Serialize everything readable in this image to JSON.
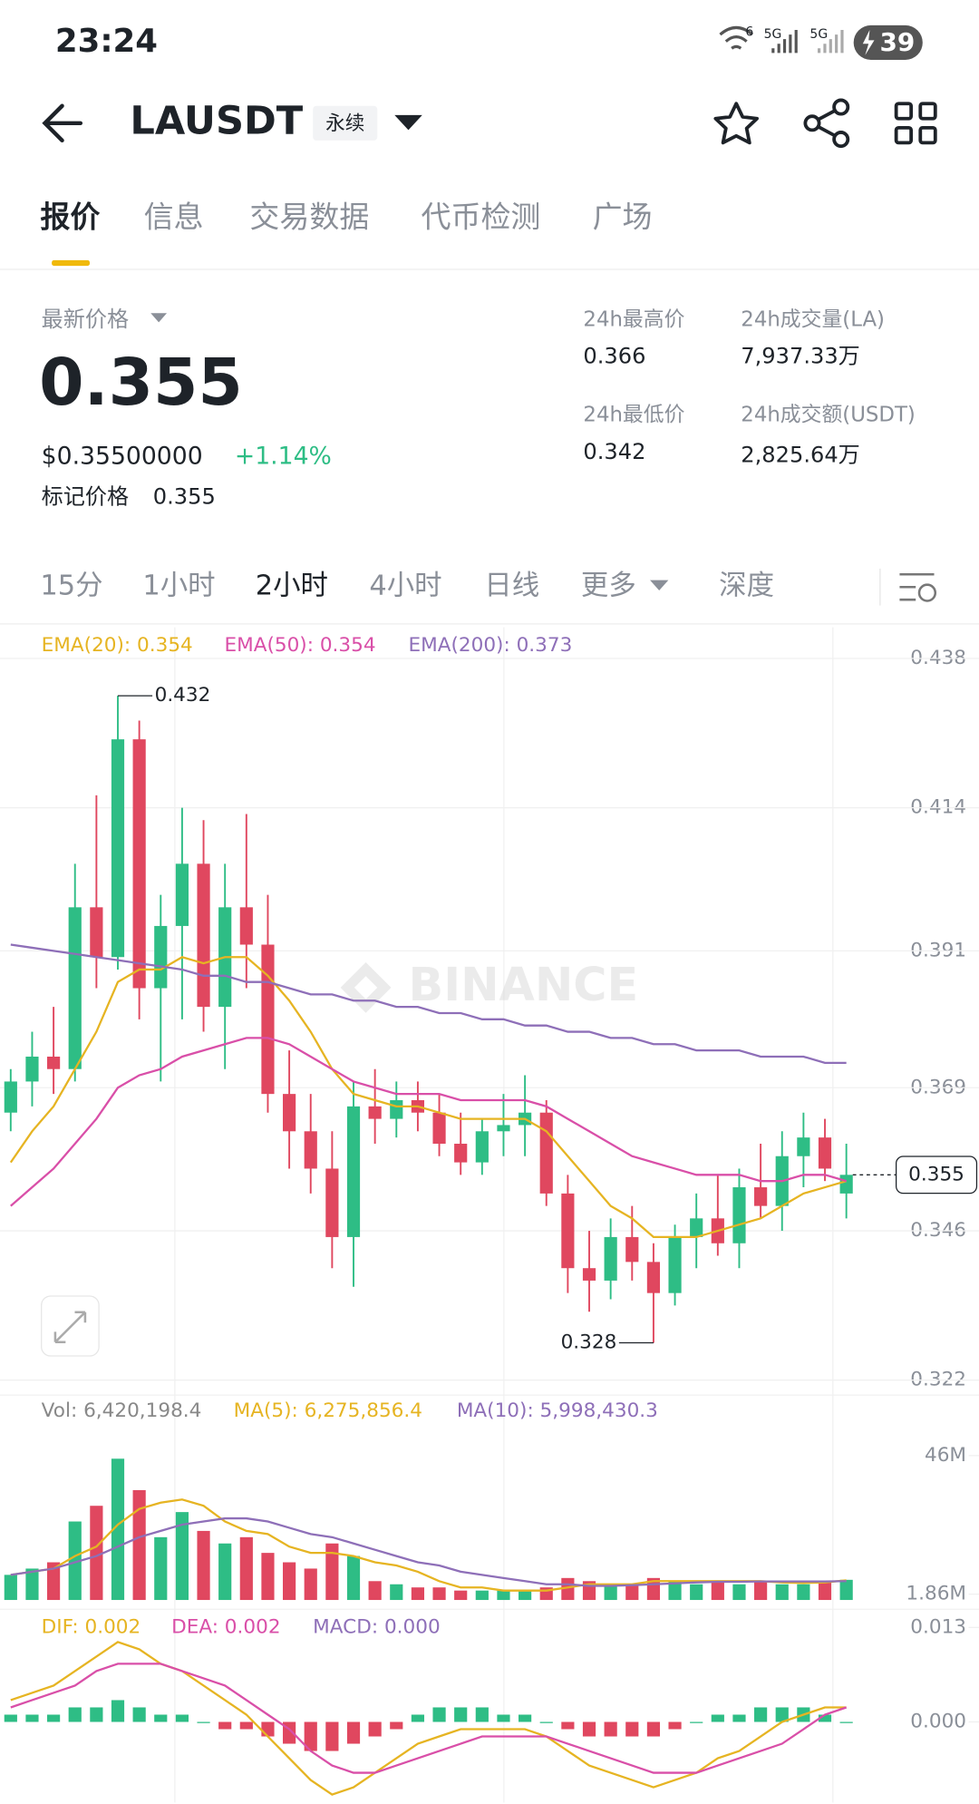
{
  "status_bar": {
    "time": "23:24",
    "wifi": "6",
    "network": [
      "5G",
      "5G"
    ],
    "battery": "39"
  },
  "header": {
    "symbol": "LAUSDT",
    "tag": "永续"
  },
  "tabs": [
    "报价",
    "信息",
    "交易数据",
    "代币检测",
    "广场"
  ],
  "price": {
    "latest_label": "最新价格",
    "last": "0.355",
    "usd": "$0.35500000",
    "change": "+1.14%",
    "mark_label": "标记价格",
    "mark": "0.355"
  },
  "stats": [
    {
      "label": "24h最高价",
      "value": "0.366"
    },
    {
      "label": "24h成交量(LA)",
      "value": "7,937.33万"
    },
    {
      "label": "24h最低价",
      "value": "0.342"
    },
    {
      "label": "24h成交额(USDT)",
      "value": "2,825.64万"
    }
  ],
  "intervals": [
    "15分",
    "1小时",
    "2小时",
    "4小时",
    "日线",
    "更多",
    "深度"
  ],
  "watermark": "BINANCE",
  "chart_data": [
    {
      "type": "candlestick",
      "up_color": "#2ebd85",
      "down_color": "#e0475f",
      "open": [
        0.365,
        0.37,
        0.374,
        0.372,
        0.398,
        0.39,
        0.425,
        0.385,
        0.395,
        0.405,
        0.382,
        0.398,
        0.392,
        0.368,
        0.362,
        0.356,
        0.345,
        0.366,
        0.364,
        0.367,
        0.365,
        0.36,
        0.357,
        0.362,
        0.363,
        0.365,
        0.352,
        0.34,
        0.338,
        0.345,
        0.341,
        0.336,
        0.345,
        0.348,
        0.344,
        0.353,
        0.35,
        0.358,
        0.361,
        0.352
      ],
      "high": [
        0.372,
        0.378,
        0.382,
        0.405,
        0.416,
        0.432,
        0.428,
        0.4,
        0.414,
        0.412,
        0.405,
        0.413,
        0.4,
        0.375,
        0.368,
        0.362,
        0.37,
        0.372,
        0.37,
        0.37,
        0.368,
        0.365,
        0.364,
        0.368,
        0.371,
        0.367,
        0.355,
        0.346,
        0.348,
        0.35,
        0.344,
        0.347,
        0.352,
        0.355,
        0.356,
        0.36,
        0.362,
        0.365,
        0.364,
        0.36
      ],
      "low": [
        0.362,
        0.366,
        0.368,
        0.37,
        0.385,
        0.388,
        0.38,
        0.37,
        0.38,
        0.378,
        0.372,
        0.385,
        0.365,
        0.356,
        0.352,
        0.34,
        0.337,
        0.36,
        0.361,
        0.362,
        0.358,
        0.355,
        0.355,
        0.358,
        0.358,
        0.35,
        0.336,
        0.333,
        0.335,
        0.338,
        0.328,
        0.334,
        0.34,
        0.342,
        0.34,
        0.348,
        0.346,
        0.353,
        0.354,
        0.348
      ],
      "close": [
        0.37,
        0.374,
        0.372,
        0.398,
        0.39,
        0.425,
        0.385,
        0.395,
        0.405,
        0.382,
        0.398,
        0.392,
        0.368,
        0.362,
        0.356,
        0.345,
        0.366,
        0.364,
        0.367,
        0.365,
        0.36,
        0.357,
        0.362,
        0.363,
        0.365,
        0.352,
        0.34,
        0.338,
        0.345,
        0.341,
        0.336,
        0.345,
        0.348,
        0.344,
        0.353,
        0.35,
        0.358,
        0.361,
        0.356,
        0.355
      ],
      "series": [
        {
          "name": "EMA(20): 0.354",
          "color": "#e6b422",
          "values": [
            0.357,
            0.362,
            0.366,
            0.372,
            0.378,
            0.386,
            0.388,
            0.388,
            0.39,
            0.389,
            0.39,
            0.39,
            0.387,
            0.383,
            0.378,
            0.372,
            0.368,
            0.367,
            0.366,
            0.366,
            0.365,
            0.364,
            0.364,
            0.364,
            0.364,
            0.362,
            0.358,
            0.354,
            0.35,
            0.348,
            0.345,
            0.345,
            0.345,
            0.346,
            0.347,
            0.348,
            0.35,
            0.352,
            0.353,
            0.354
          ]
        },
        {
          "name": "EMA(50): 0.354",
          "color": "#d94fa8",
          "values": [
            0.35,
            0.353,
            0.356,
            0.36,
            0.364,
            0.369,
            0.371,
            0.372,
            0.374,
            0.375,
            0.376,
            0.377,
            0.377,
            0.376,
            0.374,
            0.372,
            0.37,
            0.369,
            0.368,
            0.368,
            0.368,
            0.367,
            0.367,
            0.367,
            0.367,
            0.366,
            0.364,
            0.362,
            0.36,
            0.358,
            0.357,
            0.356,
            0.355,
            0.355,
            0.355,
            0.354,
            0.354,
            0.355,
            0.355,
            0.354
          ]
        },
        {
          "name": "EMA(200): 0.373",
          "color": "#8e6fb8",
          "values": [
            0.392,
            0.3915,
            0.391,
            0.3905,
            0.39,
            0.3895,
            0.389,
            0.3885,
            0.388,
            0.387,
            0.387,
            0.386,
            0.386,
            0.385,
            0.384,
            0.384,
            0.383,
            0.383,
            0.382,
            0.382,
            0.381,
            0.381,
            0.38,
            0.38,
            0.379,
            0.379,
            0.378,
            0.378,
            0.377,
            0.377,
            0.376,
            0.376,
            0.375,
            0.375,
            0.375,
            0.374,
            0.374,
            0.374,
            0.373,
            0.373
          ]
        }
      ],
      "annotations": [
        0.432,
        0.328
      ],
      "last_price": 0.355,
      "ylim": [
        0.3196,
        0.443
      ],
      "yticks": [
        0.438,
        0.414,
        0.391,
        0.369,
        0.346,
        0.322
      ],
      "grid": true
    },
    {
      "type": "bar",
      "name": "Vol: 6,420,198.4",
      "name_color": "#888888",
      "up_color": "#2ebd85",
      "down_color": "#e0475f",
      "values": [
        8,
        10,
        12,
        25,
        30,
        45,
        35,
        20,
        28,
        22,
        18,
        20,
        15,
        12,
        10,
        18,
        14,
        6,
        5,
        4,
        4,
        3,
        3,
        3,
        3,
        4,
        7,
        6,
        5,
        5,
        7,
        6,
        5,
        6,
        5,
        6,
        5,
        5,
        6,
        6.4201984
      ],
      "series": [
        {
          "name": "MA(5): 6,275,856.4",
          "color": "#e6b422",
          "values": [
            8,
            9,
            10,
            14,
            17,
            24,
            29,
            31,
            32,
            30,
            25,
            22,
            21,
            17,
            15,
            15,
            14,
            12,
            11,
            9,
            6,
            4,
            4,
            3,
            3,
            3,
            4,
            5,
            5,
            5,
            6,
            6,
            6,
            6,
            6,
            6,
            5.6,
            5.4,
            5.6,
            6.2758564
          ]
        },
        {
          "name": "MA(10): 5,998,430.3",
          "color": "#8e6fb8",
          "values": [
            8,
            9,
            10,
            12,
            14,
            17,
            20,
            22,
            24,
            25,
            26,
            26,
            25,
            23,
            21,
            20,
            18,
            16,
            14,
            12,
            11,
            9,
            8,
            7,
            6,
            5,
            5,
            4.5,
            4.5,
            4.7,
            5,
            5.3,
            5.6,
            5.8,
            5.8,
            5.9,
            5.9,
            5.9,
            5.9,
            5.9984303
          ]
        }
      ],
      "ylim": [
        0,
        55
      ],
      "yticks": [
        {
          "value": 46,
          "label": "46M"
        },
        {
          "value": 1.86,
          "label": "1.86M"
        }
      ]
    },
    {
      "type": "bar",
      "name": "MACD: 0.000",
      "name_color": "#8e6fb8",
      "up_color": "#2ebd85",
      "down_color": "#e0475f",
      "values": [
        0.001,
        0.001,
        0.001,
        0.002,
        0.002,
        0.003,
        0.002,
        0.001,
        0.001,
        0,
        -0.001,
        -0.001,
        -0.002,
        -0.003,
        -0.004,
        -0.004,
        -0.003,
        -0.002,
        -0.001,
        0.001,
        0.002,
        0.002,
        0.002,
        0.001,
        0.001,
        0,
        -0.001,
        -0.002,
        -0.002,
        -0.002,
        -0.002,
        -0.001,
        0,
        0.001,
        0.001,
        0.002,
        0.002,
        0.002,
        0.001,
        0
      ],
      "series": [
        {
          "name": "DIF: 0.002",
          "color": "#e6b422",
          "values": [
            0.003,
            0.004,
            0.005,
            0.007,
            0.009,
            0.011,
            0.01,
            0.008,
            0.007,
            0.005,
            0.003,
            0.001,
            -0.002,
            -0.005,
            -0.008,
            -0.01,
            -0.009,
            -0.007,
            -0.005,
            -0.003,
            -0.002,
            -0.001,
            -0.001,
            -0.001,
            -0.001,
            -0.002,
            -0.004,
            -0.006,
            -0.007,
            -0.008,
            -0.009,
            -0.008,
            -0.007,
            -0.005,
            -0.004,
            -0.002,
            0,
            0.001,
            0.002,
            0.002
          ]
        },
        {
          "name": "DEA: 0.002",
          "color": "#d94fa8",
          "values": [
            0.002,
            0.003,
            0.004,
            0.005,
            0.007,
            0.008,
            0.008,
            0.008,
            0.007,
            0.006,
            0.005,
            0.003,
            0.001,
            -0.001,
            -0.004,
            -0.006,
            -0.007,
            -0.007,
            -0.006,
            -0.005,
            -0.004,
            -0.003,
            -0.002,
            -0.002,
            -0.002,
            -0.002,
            -0.003,
            -0.004,
            -0.005,
            -0.006,
            -0.007,
            -0.007,
            -0.007,
            -0.006,
            -0.005,
            -0.004,
            -0.003,
            -0.001,
            0.001,
            0.002
          ]
        }
      ],
      "ylim": [
        -0.0111,
        0.0152
      ],
      "yticks": [
        0.013,
        {
          "value": 0,
          "label": "0.000"
        }
      ]
    }
  ]
}
